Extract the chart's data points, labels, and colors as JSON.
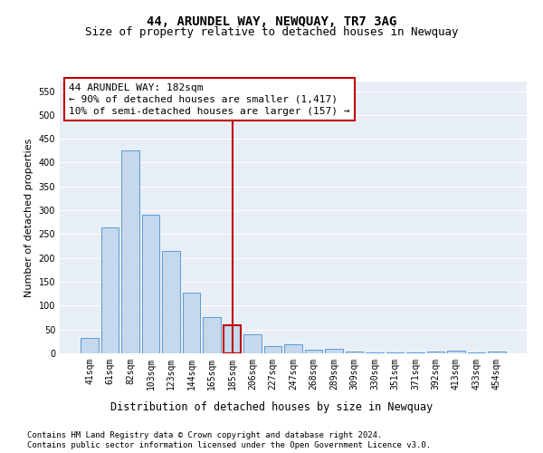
{
  "title": "44, ARUNDEL WAY, NEWQUAY, TR7 3AG",
  "subtitle": "Size of property relative to detached houses in Newquay",
  "xlabel": "Distribution of detached houses by size in Newquay",
  "ylabel": "Number of detached properties",
  "categories": [
    "41sqm",
    "61sqm",
    "82sqm",
    "103sqm",
    "123sqm",
    "144sqm",
    "165sqm",
    "185sqm",
    "206sqm",
    "227sqm",
    "247sqm",
    "268sqm",
    "289sqm",
    "309sqm",
    "330sqm",
    "351sqm",
    "371sqm",
    "392sqm",
    "413sqm",
    "433sqm",
    "454sqm"
  ],
  "values": [
    33,
    265,
    425,
    290,
    215,
    128,
    76,
    59,
    40,
    15,
    19,
    8,
    9,
    4,
    1,
    1,
    1,
    4,
    5,
    2,
    4
  ],
  "bar_color": "#c5d8ee",
  "bar_edge_color": "#5b9bd5",
  "highlight_bar_edge_color": "#c00000",
  "highlight_index": 7,
  "vline_color": "#c00000",
  "annotation_text": "44 ARUNDEL WAY: 182sqm\n← 90% of detached houses are smaller (1,417)\n10% of semi-detached houses are larger (157) →",
  "annotation_box_color": "#c00000",
  "ylim": [
    0,
    570
  ],
  "yticks": [
    0,
    50,
    100,
    150,
    200,
    250,
    300,
    350,
    400,
    450,
    500,
    550
  ],
  "bg_color": "#e8eef5",
  "footer_line1": "Contains HM Land Registry data © Crown copyright and database right 2024.",
  "footer_line2": "Contains public sector information licensed under the Open Government Licence v3.0.",
  "grid_color": "#ffffff",
  "title_fontsize": 10,
  "subtitle_fontsize": 9,
  "xlabel_fontsize": 8.5,
  "ylabel_fontsize": 8,
  "tick_fontsize": 7,
  "annotation_fontsize": 8,
  "footer_fontsize": 6.5
}
